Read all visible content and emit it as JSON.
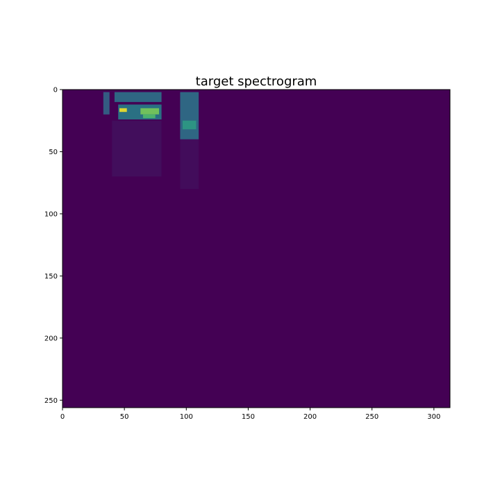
{
  "chart_data": {
    "type": "heatmap",
    "title": "target spectrogram",
    "xlabel": "",
    "ylabel": "",
    "xlim": [
      0,
      313
    ],
    "ylim": [
      256,
      0
    ],
    "xticks": [
      0,
      50,
      100,
      150,
      200,
      250,
      300
    ],
    "yticks": [
      0,
      50,
      100,
      150,
      200,
      250
    ],
    "colormap": "viridis",
    "background_value": 0,
    "grid": false,
    "legend": "none",
    "colors": {
      "low": "#440154",
      "mid_low": "#3b528b",
      "mid": "#21918c",
      "mid_high": "#5ec962",
      "high": "#fde725"
    },
    "energy_regions": [
      {
        "x": [
          33,
          38
        ],
        "y": [
          2,
          20
        ],
        "level": 0.35
      },
      {
        "x": [
          42,
          80
        ],
        "y": [
          2,
          10
        ],
        "level": 0.4
      },
      {
        "x": [
          45,
          80
        ],
        "y": [
          12,
          24
        ],
        "level": 0.45
      },
      {
        "x": [
          46,
          52
        ],
        "y": [
          15,
          18
        ],
        "level": 1.0
      },
      {
        "x": [
          63,
          78
        ],
        "y": [
          15,
          20
        ],
        "level": 0.8
      },
      {
        "x": [
          65,
          75
        ],
        "y": [
          20,
          23
        ],
        "level": 0.7
      },
      {
        "x": [
          95,
          110
        ],
        "y": [
          2,
          40
        ],
        "level": 0.4
      },
      {
        "x": [
          97,
          108
        ],
        "y": [
          25,
          32
        ],
        "level": 0.55
      },
      {
        "x": [
          40,
          80
        ],
        "y": [
          25,
          70
        ],
        "level": 0.12
      },
      {
        "x": [
          95,
          110
        ],
        "y": [
          40,
          80
        ],
        "level": 0.1
      }
    ]
  }
}
